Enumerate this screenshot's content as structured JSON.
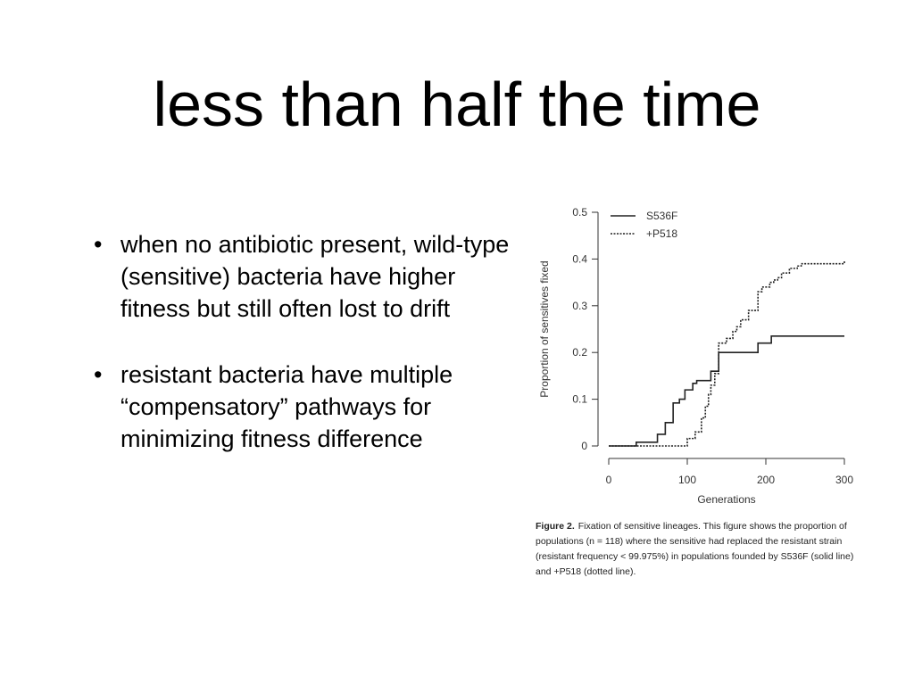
{
  "slide": {
    "title": "less than half the time",
    "bullets": [
      "when no antibiotic present, wild-type (sensitive) bacteria have higher fitness but still often lost to drift",
      "resistant bacteria have multiple “compensatory” pathways for minimizing fitness difference"
    ]
  },
  "caption": {
    "label": "Figure 2.",
    "text": "Fixation of sensitive lineages. This figure shows the proportion of populations (n = 118) where the sensitive had replaced the resistant strain (resistant frequency < 99.975%) in populations founded by S536F (solid line) and +P518 (dotted line)."
  },
  "chart_data": {
    "type": "line",
    "step": true,
    "xlabel": "Generations",
    "ylabel": "Proportion of sensitives fixed",
    "xlim": [
      0,
      300
    ],
    "ylim": [
      0,
      0.5
    ],
    "xticks": [
      0,
      100,
      200,
      300
    ],
    "yticks": [
      0,
      0.1,
      0.2,
      0.3,
      0.4,
      0.5
    ],
    "ytick_labels": [
      "0",
      "0.1",
      "0.2",
      "0.3",
      "0.4",
      "0.5"
    ],
    "grid": false,
    "legend_position": "top-left",
    "series": [
      {
        "name": "S536F",
        "style": "solid",
        "x": [
          0,
          35,
          62,
          72,
          82,
          90,
          97,
          107,
          112,
          130,
          140,
          152,
          190,
          207,
          300
        ],
        "y": [
          0,
          0.008,
          0.025,
          0.05,
          0.092,
          0.1,
          0.12,
          0.134,
          0.14,
          0.16,
          0.2,
          0.2,
          0.22,
          0.235,
          0.235
        ]
      },
      {
        "name": "+P518",
        "style": "dotted",
        "x": [
          0,
          60,
          100,
          110,
          118,
          123,
          127,
          130,
          135,
          140,
          150,
          158,
          163,
          168,
          178,
          190,
          195,
          205,
          210,
          215,
          220,
          230,
          240,
          245,
          250,
          260,
          270,
          280,
          300
        ],
        "y": [
          0,
          0,
          0.016,
          0.03,
          0.06,
          0.085,
          0.11,
          0.13,
          0.155,
          0.22,
          0.23,
          0.245,
          0.255,
          0.27,
          0.29,
          0.33,
          0.34,
          0.35,
          0.355,
          0.36,
          0.37,
          0.38,
          0.385,
          0.39,
          0.39,
          0.39,
          0.39,
          0.39,
          0.395
        ]
      }
    ]
  }
}
